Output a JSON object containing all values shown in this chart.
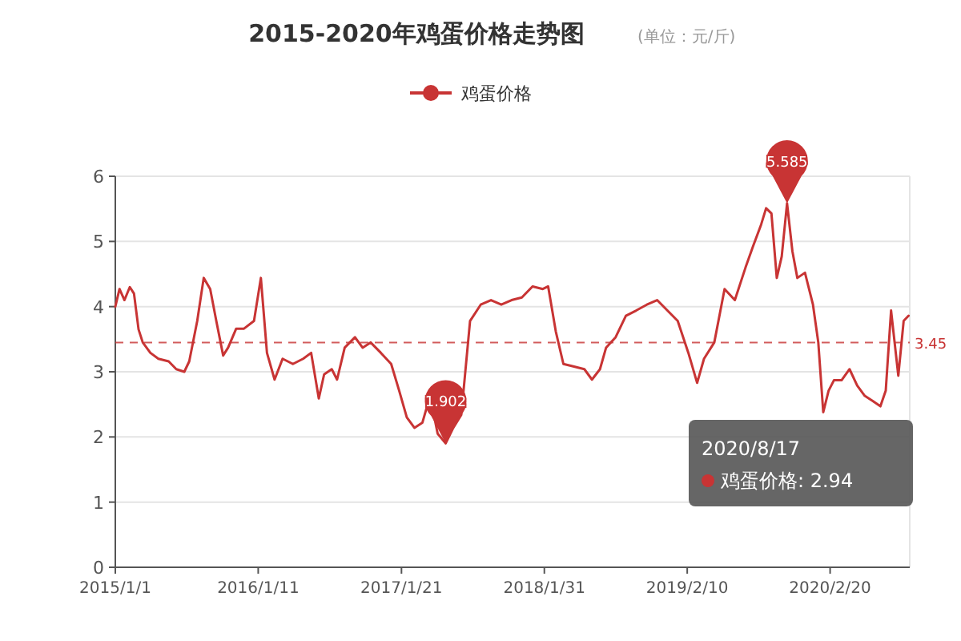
{
  "chart_data": {
    "type": "line",
    "title": "2015-2020年鸡蛋价格走势图",
    "subtitle": "(单位：元/斤)",
    "legend": "top",
    "grid": "y",
    "x": [
      "2015-01-01",
      "2015-01-12",
      "2015-01-25",
      "2015-02-08",
      "2015-02-19",
      "2015-03-03",
      "2015-03-14",
      "2015-04-03",
      "2015-04-24",
      "2015-05-21",
      "2015-06-10",
      "2015-07-01",
      "2015-07-14",
      "2015-08-04",
      "2015-08-21",
      "2015-09-07",
      "2015-09-23",
      "2015-10-11",
      "2015-10-24",
      "2015-11-14",
      "2015-12-04",
      "2015-12-31",
      "2016-01-18",
      "2016-02-03",
      "2016-02-23",
      "2016-03-15",
      "2016-04-11",
      "2016-05-08",
      "2016-05-29",
      "2016-06-18",
      "2016-07-02",
      "2016-07-22",
      "2016-08-05",
      "2016-08-25",
      "2016-09-21",
      "2016-10-11",
      "2016-11-01",
      "2016-11-28",
      "2016-12-25",
      "2017-01-15",
      "2017-02-04",
      "2017-02-24",
      "2017-03-17",
      "2017-04-06",
      "2017-04-26",
      "2017-05-17",
      "2017-06-06",
      "2017-06-27",
      "2017-07-20",
      "2017-08-17",
      "2017-09-13",
      "2017-10-10",
      "2017-11-06",
      "2017-12-03",
      "2017-12-31",
      "2018-01-27",
      "2018-02-10",
      "2018-03-02",
      "2018-03-22",
      "2018-04-19",
      "2018-05-16",
      "2018-06-05",
      "2018-06-26",
      "2018-07-12",
      "2018-08-06",
      "2018-09-02",
      "2018-09-29",
      "2018-10-27",
      "2018-11-23",
      "2018-12-20",
      "2019-01-16",
      "2019-02-13",
      "2019-03-08",
      "2019-03-26",
      "2019-04-22",
      "2019-05-19",
      "2019-06-15",
      "2019-07-13",
      "2019-08-02",
      "2019-08-23",
      "2019-09-05",
      "2019-09-19",
      "2019-10-03",
      "2019-10-16",
      "2019-10-30",
      "2019-11-13",
      "2019-11-26",
      "2019-12-16",
      "2020-01-06",
      "2020-01-20",
      "2020-02-02",
      "2020-02-16",
      "2020-03-01",
      "2020-03-21",
      "2020-04-11",
      "2020-05-01",
      "2020-05-21",
      "2020-06-11",
      "2020-07-01",
      "2020-07-15",
      "2020-07-29",
      "2020-08-17",
      "2020-08-31",
      "2020-09-13"
    ],
    "series": [
      {
        "name": "鸡蛋价格",
        "color": "#c83434",
        "values": [
          4.0,
          4.27,
          4.1,
          4.3,
          4.2,
          3.65,
          3.45,
          3.29,
          3.2,
          3.16,
          3.04,
          3.0,
          3.16,
          3.78,
          4.44,
          4.27,
          3.78,
          3.25,
          3.37,
          3.66,
          3.66,
          3.78,
          4.44,
          3.29,
          2.88,
          3.2,
          3.12,
          3.2,
          3.29,
          2.59,
          2.96,
          3.04,
          2.88,
          3.37,
          3.53,
          3.37,
          3.45,
          3.29,
          3.12,
          2.71,
          2.3,
          2.14,
          2.22,
          2.63,
          2.05,
          1.902,
          2.14,
          2.34,
          3.78,
          4.03,
          4.1,
          4.03,
          4.1,
          4.14,
          4.31,
          4.27,
          4.31,
          3.62,
          3.12,
          3.08,
          3.04,
          2.88,
          3.04,
          3.37,
          3.53,
          3.86,
          3.94,
          4.03,
          4.1,
          3.94,
          3.78,
          3.29,
          2.83,
          3.2,
          3.45,
          4.27,
          4.1,
          4.6,
          4.93,
          5.26,
          5.51,
          5.43,
          4.44,
          4.77,
          5.585,
          4.85,
          4.44,
          4.52,
          4.03,
          3.45,
          2.38,
          2.71,
          2.87,
          2.87,
          3.04,
          2.79,
          2.63,
          2.55,
          2.47,
          2.71,
          3.94,
          2.94,
          3.78,
          3.86
        ]
      }
    ],
    "xlim": [
      "2015-01-01",
      "2020-09-16"
    ],
    "xticks": [
      {
        "value": "2015-01-01",
        "label": "2015/1/1"
      },
      {
        "value": "2016-01-11",
        "label": "2016/1/11"
      },
      {
        "value": "2017-01-21",
        "label": "2017/1/21"
      },
      {
        "value": "2018-01-31",
        "label": "2018/1/31"
      },
      {
        "value": "2019-02-10",
        "label": "2019/2/10"
      },
      {
        "value": "2020-02-20",
        "label": "2020/2/20"
      }
    ],
    "ylim": [
      0,
      6
    ],
    "yticks": [
      0,
      1,
      2,
      3,
      4,
      5,
      6
    ],
    "ref_lines": [
      {
        "axis": "y",
        "value": 3.45,
        "label": "3.45",
        "line_style": "dashed"
      }
    ],
    "annotations": [
      {
        "text": "5.585",
        "x": "2019-10-30",
        "y": 5.585
      },
      {
        "text": "1.902",
        "x": "2017-05-17",
        "y": 1.902
      },
      "2020/8/17\n鸡蛋价格: 2.94"
    ]
  }
}
